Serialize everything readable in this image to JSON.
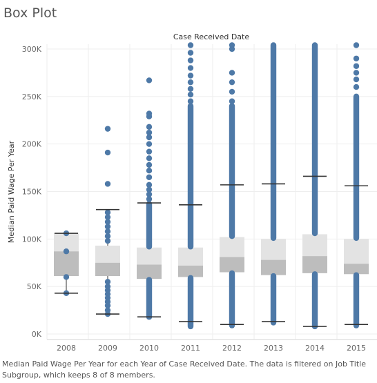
{
  "sheet_title": "Box Plot",
  "caption": "Median Paid Wage Per Year for each Year of Case Received Date. The data is filtered on Job Title Subgroup, which keeps 8 of 8 members.",
  "colors": {
    "dot": "#4e79a7",
    "box_upper": "#e3e3e3",
    "box_lower": "#bdbdbd",
    "whisker": "#333333",
    "grid": "#eeeeee"
  },
  "chart_data": {
    "type": "box",
    "title": "",
    "x_header": "Case Received Date",
    "ylabel": "Median Paid Wage Per Year",
    "ylim": [
      0,
      305000
    ],
    "y_ticks": [
      0,
      50000,
      100000,
      150000,
      200000,
      250000,
      300000
    ],
    "y_tick_labels": [
      "0K",
      "50K",
      "100K",
      "150K",
      "200K",
      "250K",
      "300K"
    ],
    "categories": [
      "2008",
      "2009",
      "2010",
      "2011",
      "2012",
      "2013",
      "2014",
      "2015"
    ],
    "boxes": [
      {
        "year": "2008",
        "whisker_low": 43000,
        "q1": 61000,
        "median": 87000,
        "q3": 106000,
        "whisker_high": 106000,
        "outlier_bands": [],
        "outliers": [
          43000,
          60000,
          87000,
          106000
        ]
      },
      {
        "year": "2009",
        "whisker_low": 21000,
        "q1": 61000,
        "median": 75000,
        "q3": 93000,
        "whisker_high": 131000,
        "outlier_bands": [],
        "outliers": [
          21000,
          25000,
          30000,
          34000,
          38000,
          42000,
          46000,
          50000,
          55000,
          98000,
          103000,
          108000,
          113000,
          118000,
          123000,
          128000,
          158000,
          191000,
          216000
        ]
      },
      {
        "year": "2010",
        "whisker_low": 18000,
        "q1": 58000,
        "median": 73000,
        "q3": 91000,
        "whisker_high": 138000,
        "outlier_bands": [
          [
            18000,
            57000
          ],
          [
            92000,
            137000
          ]
        ],
        "outliers": [
          142000,
          147000,
          152000,
          157000,
          165000,
          172000,
          178000,
          185000,
          192000,
          200000,
          207000,
          212000,
          218000,
          229000,
          232000,
          267000
        ]
      },
      {
        "year": "2011",
        "whisker_low": 13000,
        "q1": 60000,
        "median": 72000,
        "q3": 91000,
        "whisker_high": 136000,
        "outlier_bands": [
          [
            8000,
            59000
          ],
          [
            92000,
            240000
          ]
        ],
        "outliers": [
          245000,
          252000,
          258000,
          265000,
          272000,
          280000,
          288000,
          296000,
          304000
        ]
      },
      {
        "year": "2012",
        "whisker_low": 10000,
        "q1": 65000,
        "median": 81000,
        "q3": 102000,
        "whisker_high": 157000,
        "outlier_bands": [
          [
            9000,
            64000
          ],
          [
            103000,
            240000
          ]
        ],
        "outliers": [
          245000,
          255000,
          265000,
          275000,
          300000,
          304000
        ]
      },
      {
        "year": "2013",
        "whisker_low": 13000,
        "q1": 62000,
        "median": 78000,
        "q3": 100000,
        "whisker_high": 158000,
        "outlier_bands": [
          [
            12000,
            61000
          ],
          [
            101000,
            304000
          ]
        ],
        "outliers": []
      },
      {
        "year": "2014",
        "whisker_low": 8000,
        "q1": 64000,
        "median": 82000,
        "q3": 105000,
        "whisker_high": 166000,
        "outlier_bands": [
          [
            8000,
            63000
          ],
          [
            106000,
            304000
          ]
        ],
        "outliers": []
      },
      {
        "year": "2015",
        "whisker_low": 10000,
        "q1": 63000,
        "median": 74000,
        "q3": 100000,
        "whisker_high": 156000,
        "outlier_bands": [
          [
            9000,
            62000
          ],
          [
            101000,
            250000
          ]
        ],
        "outliers": [
          260000,
          268000,
          275000,
          282000,
          290000,
          304000
        ]
      }
    ],
    "grid": true,
    "legend": "none"
  }
}
